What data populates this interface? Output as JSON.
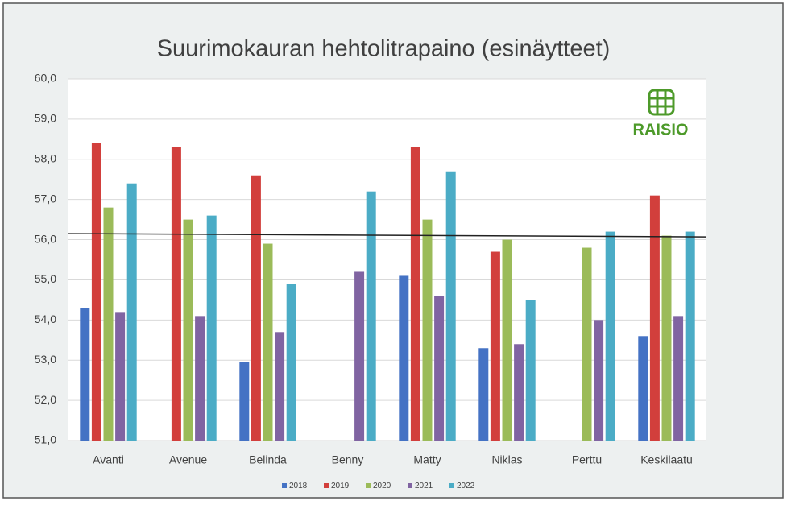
{
  "chart_data": {
    "type": "bar",
    "title": "Suurimokauran hehtolitrapaino (esinäytteet)",
    "categories": [
      "Avanti",
      "Avenue",
      "Belinda",
      "Benny",
      "Matty",
      "Niklas",
      "Perttu",
      "Keskilaatu"
    ],
    "series": [
      {
        "name": "2018",
        "color": "#4472c4",
        "values": [
          54.3,
          null,
          52.95,
          null,
          55.1,
          53.3,
          null,
          53.6
        ]
      },
      {
        "name": "2019",
        "color": "#d23f3c",
        "values": [
          58.4,
          58.3,
          57.6,
          null,
          58.3,
          55.7,
          null,
          57.1
        ]
      },
      {
        "name": "2020",
        "color": "#9bbb59",
        "values": [
          56.8,
          56.5,
          55.9,
          null,
          56.5,
          56.0,
          55.8,
          56.1
        ]
      },
      {
        "name": "2021",
        "color": "#8064a2",
        "values": [
          54.2,
          54.1,
          53.7,
          55.2,
          54.6,
          53.4,
          54.0,
          54.1
        ]
      },
      {
        "name": "2022",
        "color": "#4bacc6",
        "values": [
          57.4,
          56.6,
          54.9,
          57.2,
          57.7,
          54.5,
          56.2,
          56.2
        ]
      }
    ],
    "ylim": [
      51,
      60
    ],
    "yticks": [
      {
        "value": 51,
        "label": "51,0"
      },
      {
        "value": 52,
        "label": "52,0"
      },
      {
        "value": 53,
        "label": "53,0"
      },
      {
        "value": 54,
        "label": "54,0"
      },
      {
        "value": 55,
        "label": "55,0"
      },
      {
        "value": 56,
        "label": "56,0"
      },
      {
        "value": 57,
        "label": "57,0"
      },
      {
        "value": 58,
        "label": "58,0"
      },
      {
        "value": 59,
        "label": "59,0"
      },
      {
        "value": 60,
        "label": "60,0"
      }
    ],
    "grid": true,
    "reference_line": {
      "start": 56.15,
      "end": 56.07,
      "color": "#222222"
    },
    "legend": "bottom",
    "logo_text": "RAISIO"
  }
}
